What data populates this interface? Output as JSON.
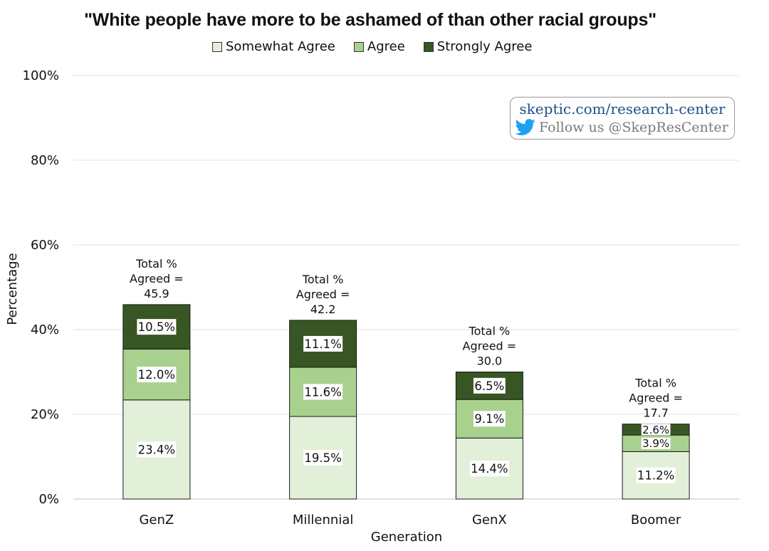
{
  "chart_data": {
    "type": "bar",
    "stacked": true,
    "title": "\"White people have more to be ashamed of than other racial groups\"",
    "xlabel": "Generation",
    "ylabel": "Percentage",
    "ylim": [
      0,
      100
    ],
    "yticks": [
      "0%",
      "20%",
      "40%",
      "60%",
      "80%",
      "100%"
    ],
    "categories": [
      "GenZ",
      "Millennial",
      "GenX",
      "Boomer"
    ],
    "series": [
      {
        "name": "Somewhat Agree",
        "color": "#e2efd9",
        "values": [
          23.4,
          19.5,
          14.4,
          11.2
        ],
        "labels": [
          "23.4%",
          "19.5%",
          "14.4%",
          "11.2%"
        ]
      },
      {
        "name": "Agree",
        "color": "#a9d18e",
        "values": [
          12.0,
          11.6,
          9.1,
          3.9
        ],
        "labels": [
          "12.0%",
          "11.6%",
          "9.1%",
          "3.9%"
        ]
      },
      {
        "name": "Strongly Agree",
        "color": "#375623",
        "values": [
          10.5,
          11.1,
          6.5,
          2.6
        ],
        "labels": [
          "10.5%",
          "11.1%",
          "6.5%",
          "2.6%"
        ]
      }
    ],
    "totals": [
      {
        "line1": "Total %",
        "line2": "Agreed =",
        "value": "45.9",
        "num": 45.9
      },
      {
        "line1": "Total %",
        "line2": "Agreed =",
        "value": "42.2",
        "num": 42.2
      },
      {
        "line1": "Total %",
        "line2": "Agreed =",
        "value": "30.0",
        "num": 30.0
      },
      {
        "line1": "Total %",
        "line2": "Agreed =",
        "value": "17.7",
        "num": 17.7
      }
    ],
    "grid": true,
    "legend_position": "top"
  },
  "watermark": {
    "site": "skeptic.com/research-center",
    "follow": "Follow us @SkepResCenter",
    "icon": "twitter-bird-icon"
  }
}
